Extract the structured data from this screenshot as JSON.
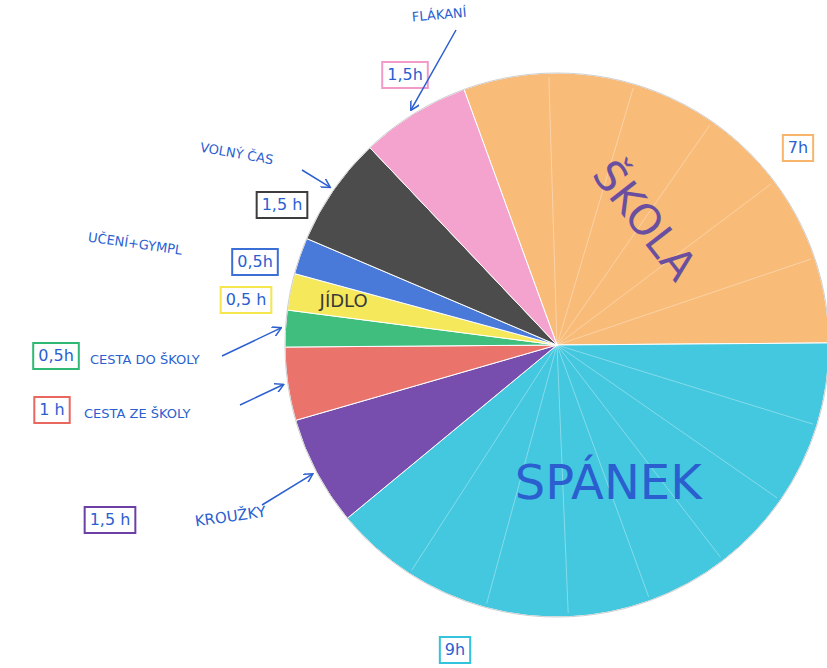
{
  "chart_data": {
    "type": "pie",
    "categories": [
      "ŠKOLA",
      "SPÁNEK",
      "KROUŽKY",
      "CESTA ZE ŠKOLY",
      "CESTA DO ŠKOLY",
      "JÍDLO",
      "UČENÍ+GYMPL",
      "VOLNÝ ČAS",
      "FLÁKANÍ"
    ],
    "values": [
      7,
      9,
      1.5,
      1,
      0.5,
      0.5,
      0.5,
      1.5,
      1.5
    ],
    "value_labels": [
      "7h",
      "9h",
      "1,5 h",
      "1 h",
      "0,5h",
      "0,5 h",
      "0,5h",
      "1,5 h",
      "1,5h"
    ],
    "colors": [
      "#f7b56c",
      "#33c3dc",
      "#6b3fa6",
      "#e8675f",
      "#2fb873",
      "#f4e64c",
      "#3b6fd6",
      "#3d3d3d",
      "#f29bc9"
    ],
    "data_labels": true
  }
}
